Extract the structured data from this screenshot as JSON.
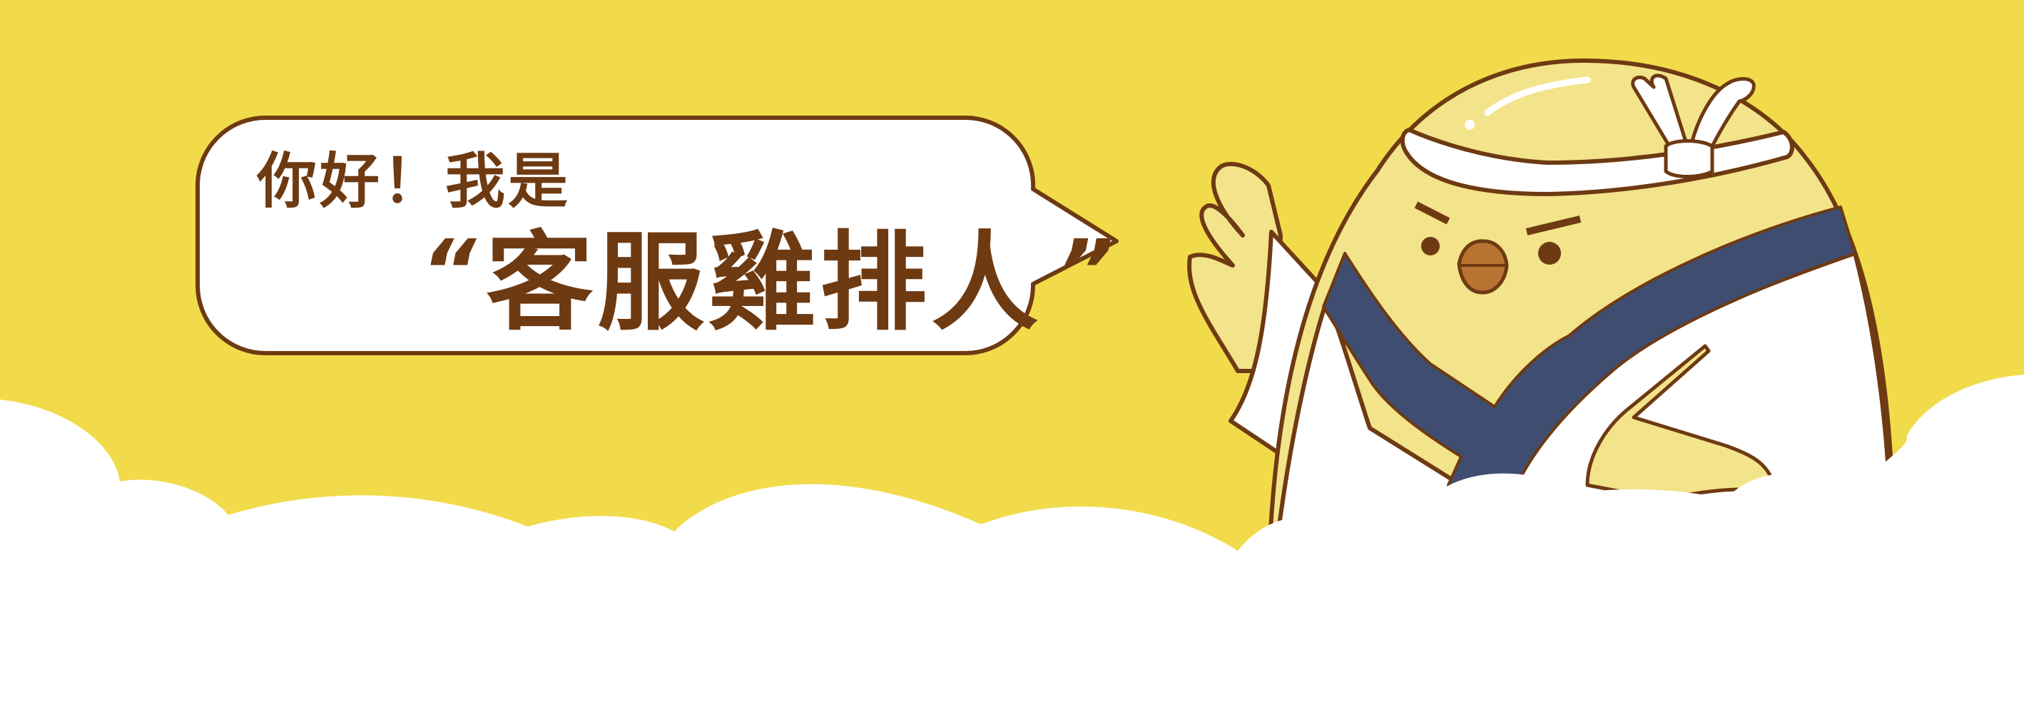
{
  "banner": {
    "greeting": "你好！我是",
    "title": "客服雞排人",
    "quote_open": "“",
    "quote_close": "”"
  },
  "mascot": {
    "icon": "chick-mascot-icon"
  },
  "colors": {
    "background": "#f2db4b",
    "outline": "#6e3a12",
    "body": "#f3e38b",
    "robe": "#ffffff",
    "sash": "#3f4d70",
    "beak": "#b87333",
    "clouds": "#ffffff"
  }
}
